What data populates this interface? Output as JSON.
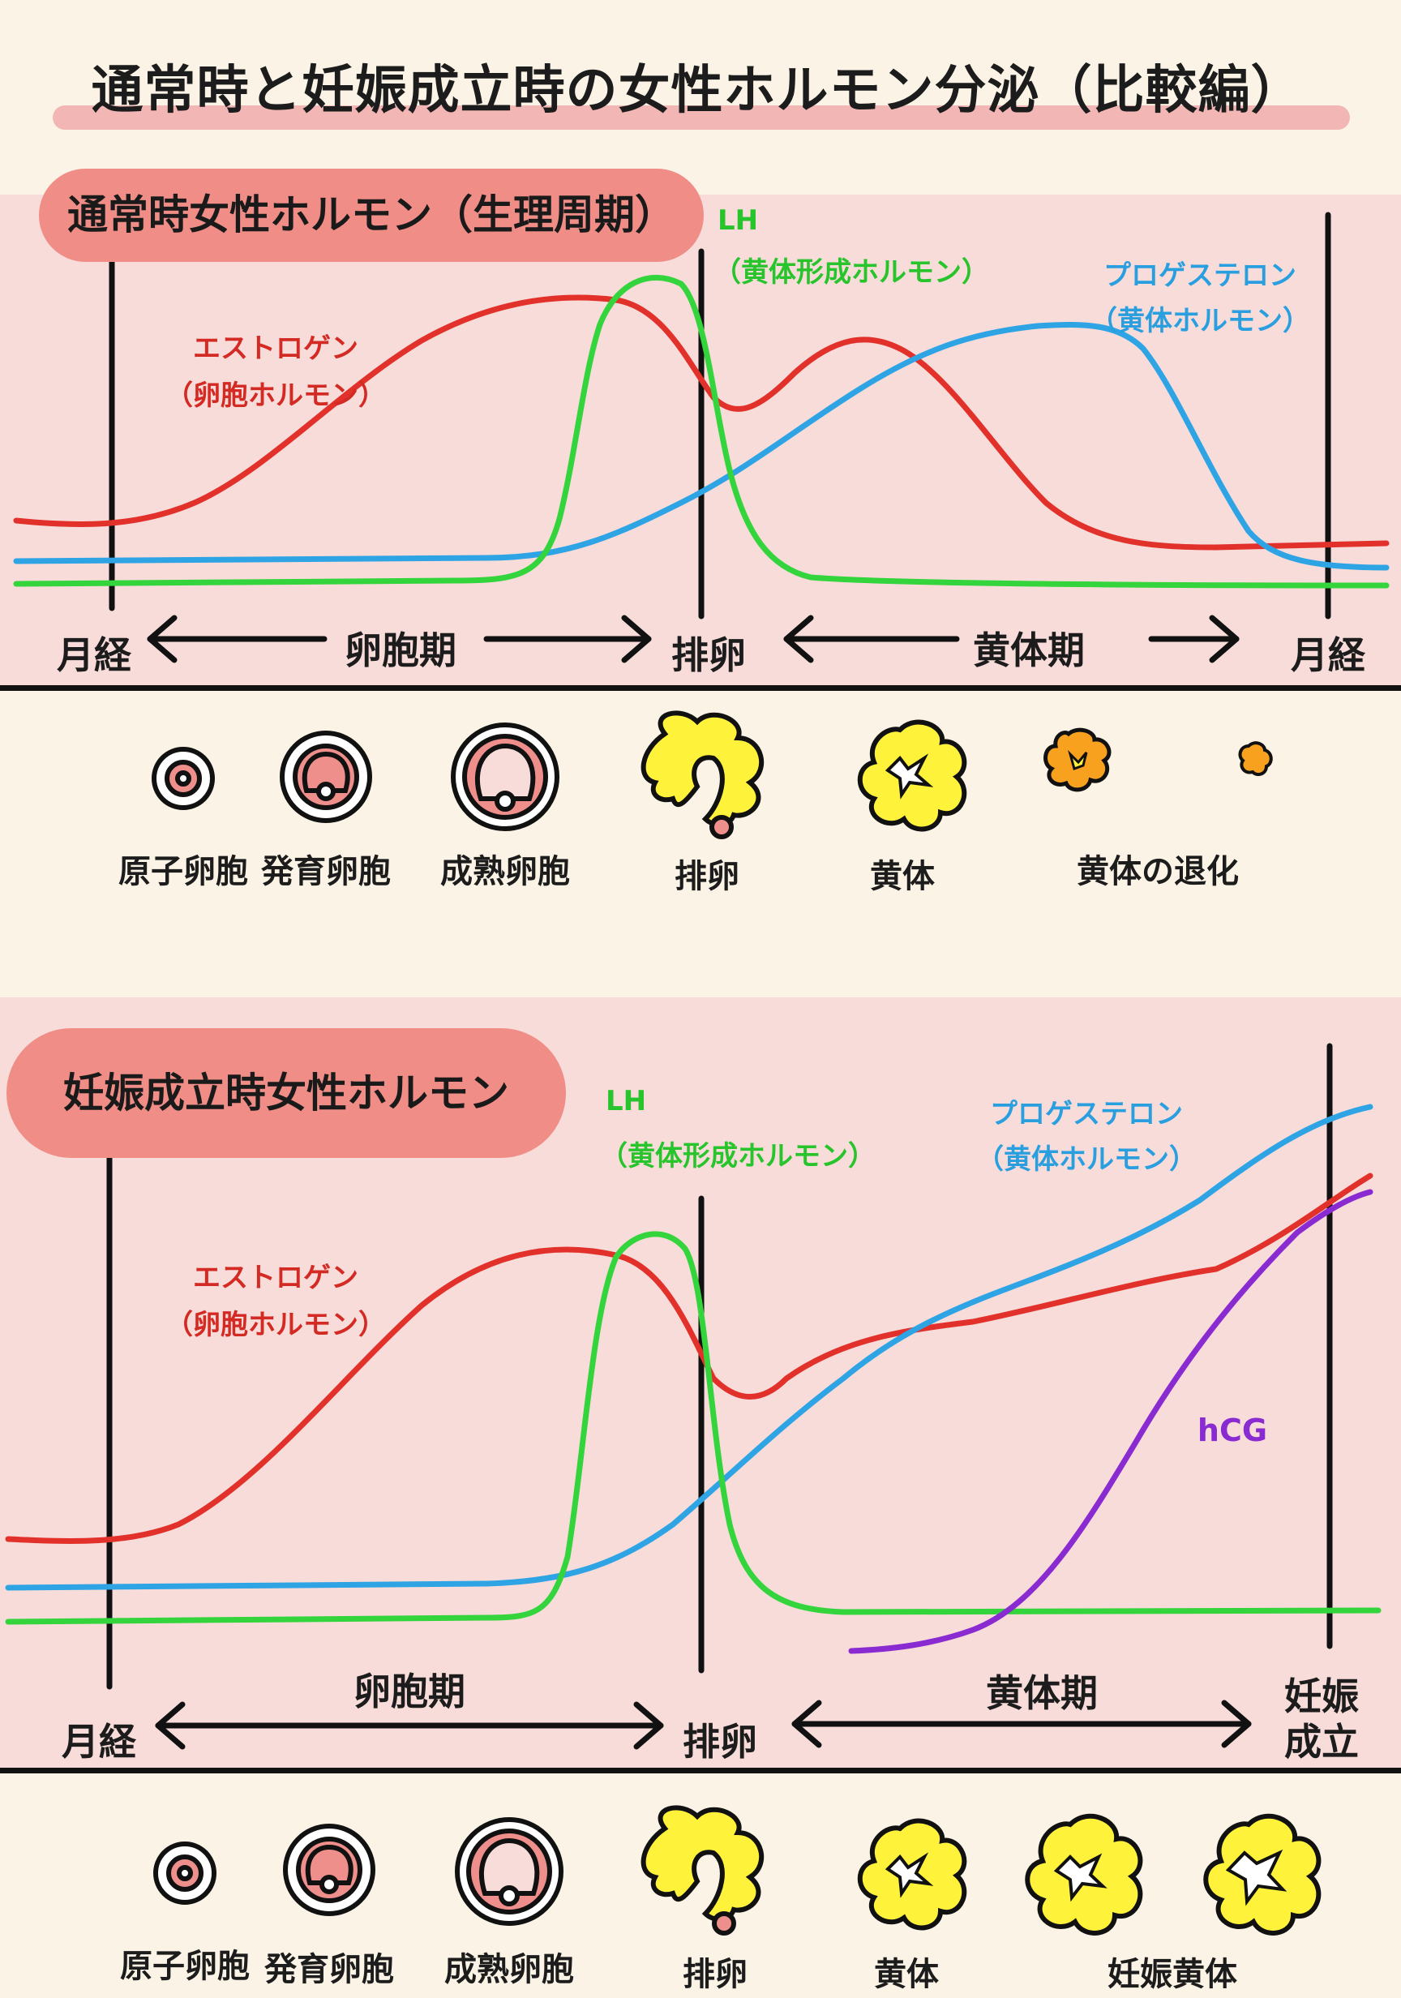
{
  "title": "通常時と妊娠成立時の女性ホルモン分泌（比較編）",
  "colors": {
    "estrogen": "#e2312b",
    "lh": "#33d43c",
    "progesterone": "#2ea4e5",
    "hcg": "#8a2ad1",
    "follicle": "#ef8f8c",
    "corpus_luteum": "#fff23a",
    "corpus_luteum_regress": "#f7a11f"
  },
  "panel_normal": {
    "title": "通常時女性ホルモン（生理周期）",
    "estrogen_label": "エストロゲン",
    "estrogen_sub": "（卵胞ホルモン）",
    "lh_label": "LH",
    "lh_sub": "（黄体形成ホルモン）",
    "progesterone_label": "プロゲステロン",
    "progesterone_sub": "（黄体ホルモン）",
    "axis_left": "月経",
    "axis_follicular": "卵胞期",
    "axis_ovulation": "排卵",
    "axis_luteal": "黄体期",
    "axis_right": "月経",
    "stages": [
      "原子卵胞",
      "発育卵胞",
      "成熟卵胞",
      "排卵",
      "黄体",
      "黄体の退化"
    ]
  },
  "panel_pregnancy": {
    "title": "妊娠成立時女性ホルモン",
    "estrogen_label": "エストロゲン",
    "estrogen_sub": "（卵胞ホルモン）",
    "lh_label": "LH",
    "lh_sub": "（黄体形成ホルモン）",
    "progesterone_label": "プロゲステロン",
    "progesterone_sub": "（黄体ホルモン）",
    "hcg_label": "hCG",
    "axis_left": "月経",
    "axis_follicular": "卵胞期",
    "axis_ovulation": "排卵",
    "axis_luteal": "黄体期",
    "axis_right_1": "妊娠",
    "axis_right_2": "成立",
    "stages": [
      "原子卵胞",
      "発育卵胞",
      "成熟卵胞",
      "排卵",
      "黄体",
      "妊娠黄体"
    ]
  }
}
